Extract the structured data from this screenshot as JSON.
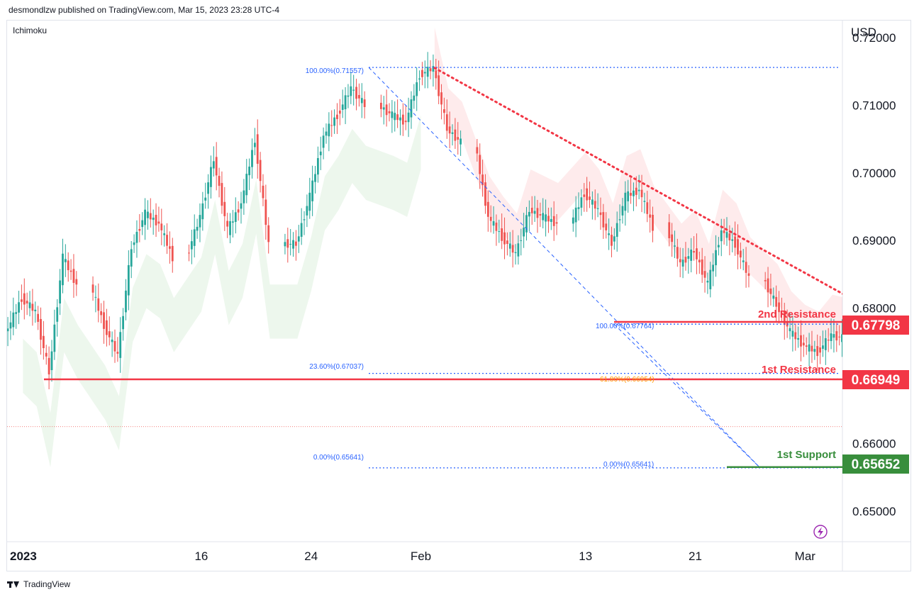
{
  "header": {
    "publisher": "desmondlzw published on TradingView.com, Mar 15, 2023 23:28 UTC-4"
  },
  "indicator": {
    "label": "Ichimoku"
  },
  "footer": {
    "brand": "TradingView"
  },
  "colors": {
    "resistance": "#f23645",
    "support": "#388e3c",
    "fib": "#2962ff",
    "fib_gold": "#ff9800",
    "up": "#26a69a",
    "down": "#ef5350"
  },
  "chart_data": {
    "type": "candlestick",
    "title": "",
    "currency": "USD",
    "ylim": [
      0.6455,
      0.7225
    ],
    "y_ticks": [
      "0.72000",
      "0.71000",
      "0.70000",
      "0.69000",
      "0.68000",
      "0.66000",
      "0.65000"
    ],
    "y_tick_values": [
      0.72,
      0.71,
      0.7,
      0.69,
      0.68,
      0.66,
      0.65
    ],
    "x_ticks": [
      {
        "label": "2023",
        "date": "2023-01-02"
      },
      {
        "label": "16",
        "date": "2023-01-16"
      },
      {
        "label": "24",
        "date": "2023-01-24"
      },
      {
        "label": "Feb",
        "date": "2023-02-01"
      },
      {
        "label": "13",
        "date": "2023-02-13"
      },
      {
        "label": "21",
        "date": "2023-02-21"
      },
      {
        "label": "Mar",
        "date": "2023-03-01"
      },
      {
        "label": "13",
        "date": "2023-03-13"
      }
    ],
    "levels": [
      {
        "name": "2nd Resistance",
        "value": "0.67798",
        "y": 0.67798,
        "kind": "resistance"
      },
      {
        "name": "1st Resistance",
        "value": "0.66949",
        "y": 0.66949,
        "kind": "resistance"
      },
      {
        "name": "1st Support",
        "value": "0.65652",
        "y": 0.65652,
        "kind": "support"
      }
    ],
    "fib_labels": {
      "left_100": "100.00%(0.71557)",
      "left_236": "23.60%(0.67037)",
      "left_0": "0.00%(0.65641)",
      "right_100": "100.00%(0.67764)",
      "right_618": "61.80%(0.66954)",
      "right_0": "0.00%(0.65641)"
    },
    "fib_values": {
      "high": 0.71557,
      "f236": 0.67037,
      "low": 0.65641,
      "r_high": 0.67764,
      "r618": 0.66954
    },
    "current_price": 0.6625,
    "trendline": {
      "from": {
        "date": "2023-02-02",
        "y": 0.7155
      },
      "to": {
        "date": "2023-03-17",
        "y": 0.6658
      }
    },
    "closes": [
      {
        "date": "2023-01-02",
        "close": 0.677
      },
      {
        "date": "2023-01-03",
        "close": 0.6815
      },
      {
        "date": "2023-01-04",
        "close": 0.6795
      },
      {
        "date": "2023-01-05",
        "close": 0.6705
      },
      {
        "date": "2023-01-06",
        "close": 0.6875
      },
      {
        "date": "2023-01-07",
        "close": 0.6835
      },
      {
        "date": "2023-01-09",
        "close": 0.6775
      },
      {
        "date": "2023-01-10",
        "close": 0.673
      },
      {
        "date": "2023-01-11",
        "close": 0.689
      },
      {
        "date": "2023-01-12",
        "close": 0.694
      },
      {
        "date": "2023-01-13",
        "close": 0.6925
      },
      {
        "date": "2023-01-14",
        "close": 0.6875
      },
      {
        "date": "2023-01-16",
        "close": 0.6935
      },
      {
        "date": "2023-01-17",
        "close": 0.702
      },
      {
        "date": "2023-01-18",
        "close": 0.6915
      },
      {
        "date": "2023-01-19",
        "close": 0.6955
      },
      {
        "date": "2023-01-20",
        "close": 0.705
      },
      {
        "date": "2023-01-21",
        "close": 0.6895
      },
      {
        "date": "2023-01-23",
        "close": 0.6895
      },
      {
        "date": "2023-01-24",
        "close": 0.6965
      },
      {
        "date": "2023-01-25",
        "close": 0.7055
      },
      {
        "date": "2023-01-26",
        "close": 0.7085
      },
      {
        "date": "2023-01-27",
        "close": 0.7125
      },
      {
        "date": "2023-01-28",
        "close": 0.71
      },
      {
        "date": "2023-01-30",
        "close": 0.7085
      },
      {
        "date": "2023-01-31",
        "close": 0.7075
      },
      {
        "date": "2023-02-01",
        "close": 0.7145
      },
      {
        "date": "2023-02-02",
        "close": 0.7155
      },
      {
        "date": "2023-02-03",
        "close": 0.7065
      },
      {
        "date": "2023-02-04",
        "close": 0.7045
      },
      {
        "date": "2023-02-06",
        "close": 0.6935
      },
      {
        "date": "2023-02-07",
        "close": 0.6905
      },
      {
        "date": "2023-02-08",
        "close": 0.688
      },
      {
        "date": "2023-02-09",
        "close": 0.6945
      },
      {
        "date": "2023-02-10",
        "close": 0.6935
      },
      {
        "date": "2023-02-11",
        "close": 0.6925
      },
      {
        "date": "2023-02-13",
        "close": 0.697
      },
      {
        "date": "2023-02-14",
        "close": 0.6945
      },
      {
        "date": "2023-02-15",
        "close": 0.6895
      },
      {
        "date": "2023-02-16",
        "close": 0.6965
      },
      {
        "date": "2023-02-17",
        "close": 0.6975
      },
      {
        "date": "2023-02-18",
        "close": 0.692
      },
      {
        "date": "2023-02-20",
        "close": 0.6865
      },
      {
        "date": "2023-02-21",
        "close": 0.6885
      },
      {
        "date": "2023-02-22",
        "close": 0.6835
      },
      {
        "date": "2023-02-23",
        "close": 0.6915
      },
      {
        "date": "2023-02-24",
        "close": 0.6895
      },
      {
        "date": "2023-02-25",
        "close": 0.6845
      },
      {
        "date": "2023-02-27",
        "close": 0.6805
      },
      {
        "date": "2023-02-28",
        "close": 0.6765
      },
      {
        "date": "2023-03-01",
        "close": 0.6745
      },
      {
        "date": "2023-03-02",
        "close": 0.6735
      },
      {
        "date": "2023-03-03",
        "close": 0.676
      },
      {
        "date": "2023-03-04",
        "close": 0.6755
      },
      {
        "date": "2023-03-06",
        "close": 0.6735
      },
      {
        "date": "2023-03-07",
        "close": 0.6655
      },
      {
        "date": "2023-03-08",
        "close": 0.6585
      },
      {
        "date": "2023-03-09",
        "close": 0.658
      },
      {
        "date": "2023-03-10",
        "close": 0.6585
      },
      {
        "date": "2023-03-11",
        "close": 0.658
      },
      {
        "date": "2023-03-13",
        "close": 0.6625
      },
      {
        "date": "2023-03-14",
        "close": 0.6675
      },
      {
        "date": "2023-03-15",
        "close": 0.6685
      },
      {
        "date": "2023-03-16",
        "close": 0.661
      },
      {
        "date": "2023-03-17",
        "close": 0.6635
      }
    ]
  }
}
